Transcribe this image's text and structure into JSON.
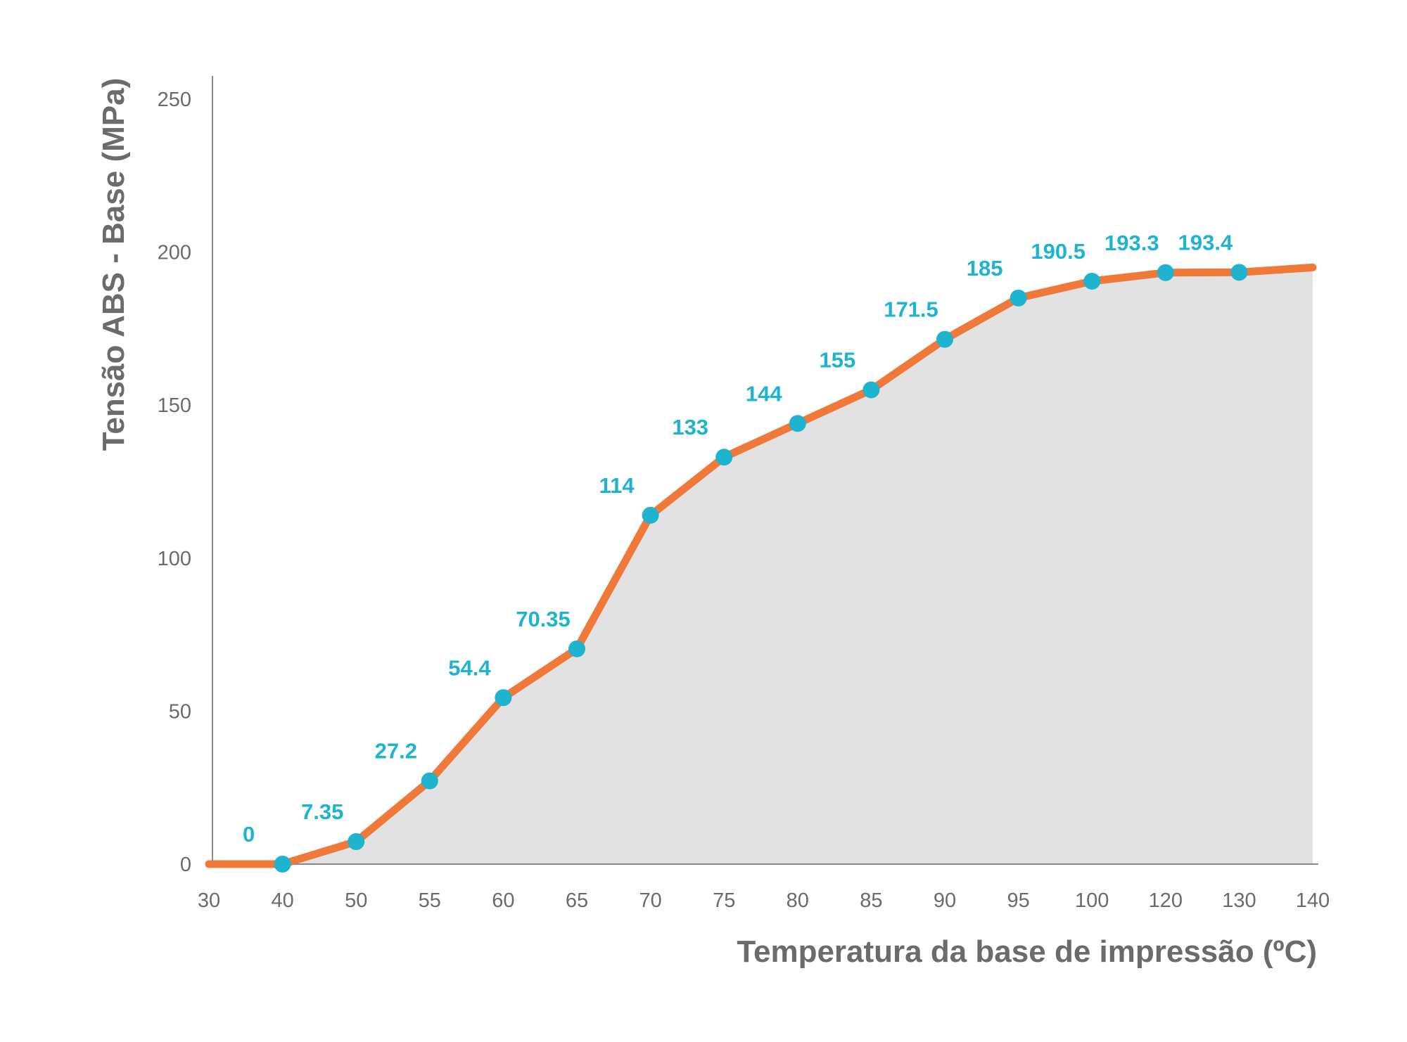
{
  "chart_data": {
    "type": "area",
    "title": "",
    "xlabel": "Temperatura da base de impressão (ºC)",
    "ylabel": "Tensão ABS - Base (MPa)",
    "categories": [
      "30",
      "40",
      "50",
      "55",
      "60",
      "65",
      "70",
      "75",
      "80",
      "85",
      "90",
      "95",
      "100",
      "120",
      "130",
      "140"
    ],
    "ylim": [
      0,
      250
    ],
    "yticks": [
      "0",
      "50",
      "100",
      "150",
      "200",
      "250"
    ],
    "series": [
      {
        "values": [
          0,
          0,
          7.35,
          27.2,
          54.4,
          70.35,
          114,
          133,
          144,
          155,
          171.5,
          185,
          190.5,
          193.3,
          193.4,
          195
        ],
        "labels": [
          "",
          "0",
          "7.35",
          "27.2",
          "54.4",
          "70.35",
          "114",
          "133",
          "144",
          "155",
          "171.5",
          "185",
          "190.5",
          "193.3",
          "193.4",
          ""
        ],
        "markers": [
          false,
          true,
          true,
          true,
          true,
          true,
          true,
          true,
          true,
          true,
          true,
          true,
          true,
          true,
          true,
          false
        ]
      }
    ],
    "grid": false,
    "legend": "none",
    "colors": {
      "line": "#f07838",
      "fill": "#e2e2e2",
      "marker": "#1eb3cf",
      "data_label": "#1eb3cf",
      "axis": "#8a8a8a",
      "text": "#6b6b6b"
    }
  }
}
